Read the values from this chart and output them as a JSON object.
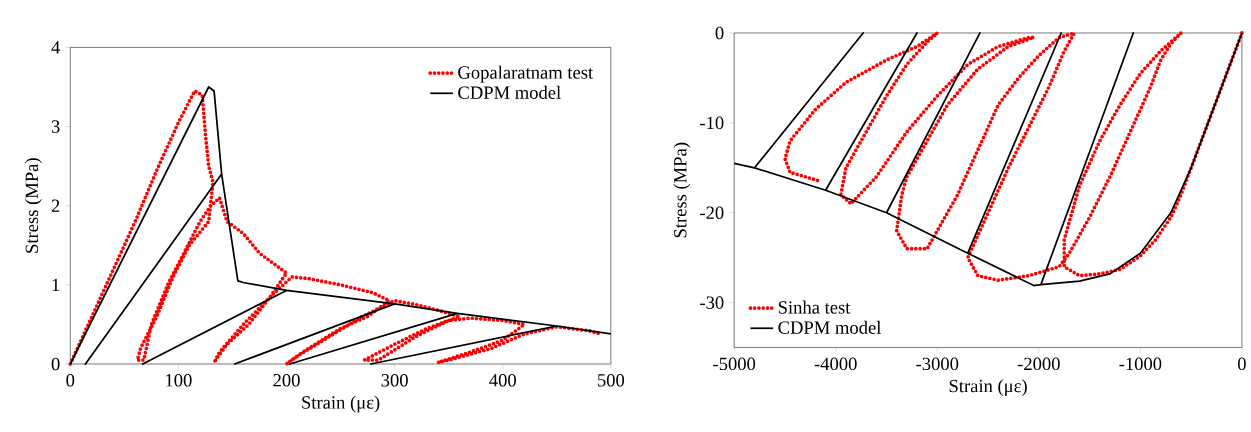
{
  "chart_data": [
    {
      "type": "line",
      "xlabel": "Strain (με)",
      "ylabel": "Stress (MPa)",
      "xlim": [
        0,
        500
      ],
      "ylim": [
        0,
        4
      ],
      "xticks": [
        0,
        100,
        200,
        300,
        400,
        500
      ],
      "yticks": [
        0,
        1,
        2,
        3,
        4
      ],
      "grid": false,
      "legend": "top right",
      "marker": "none",
      "series": [
        {
          "name": "Gopalaratnam test",
          "color": "#ff0000",
          "line_style": "dotted",
          "x": [
            0,
            20,
            40,
            60,
            80,
            100,
            115,
            122,
            125,
            128,
            132,
            128,
            110,
            95,
            80,
            65,
            62,
            68,
            75,
            90,
            105,
            120,
            130,
            138,
            145,
            160,
            175,
            190,
            200,
            185,
            165,
            145,
            133,
            138,
            160,
            185,
            205,
            220,
            250,
            280,
            295,
            275,
            250,
            215,
            200,
            210,
            240,
            270,
            300,
            320,
            340,
            360,
            330,
            300,
            272,
            285,
            320,
            350,
            370,
            400,
            420,
            400,
            370,
            340,
            350,
            390,
            420,
            450,
            480,
            490
          ],
          "values": [
            0,
            0.6,
            1.2,
            1.8,
            2.45,
            3.05,
            3.45,
            3.4,
            2.9,
            2.5,
            2.3,
            1.8,
            1.5,
            1.1,
            0.6,
            0.2,
            0.05,
            0.05,
            0.5,
            1.0,
            1.4,
            1.8,
            2.0,
            2.1,
            1.8,
            1.65,
            1.4,
            1.25,
            1.15,
            0.85,
            0.5,
            0.25,
            0.02,
            0.15,
            0.5,
            0.85,
            1.1,
            1.08,
            1.0,
            0.9,
            0.8,
            0.6,
            0.45,
            0.15,
            0,
            0.1,
            0.35,
            0.6,
            0.8,
            0.75,
            0.68,
            0.6,
            0.45,
            0.25,
            0.05,
            0.05,
            0.35,
            0.55,
            0.58,
            0.55,
            0.5,
            0.3,
            0.15,
            0.02,
            0.05,
            0.2,
            0.38,
            0.47,
            0.42,
            0.38
          ]
        },
        {
          "name": "CDPM model",
          "color": "#000000",
          "line_style": "solid",
          "x": [
            0,
            128,
            133,
            140,
            14,
            140,
            155,
            160,
            200,
            67,
            200,
            300,
            152,
            300,
            358,
            203,
            358,
            450,
            278,
            450,
            500
          ],
          "values": [
            0,
            3.5,
            3.45,
            2.4,
            0,
            2.4,
            1.05,
            1.03,
            0.93,
            0,
            0.93,
            0.76,
            0,
            0.76,
            0.64,
            0,
            0.64,
            0.48,
            0,
            0.48,
            0.38
          ]
        }
      ]
    },
    {
      "type": "line",
      "xlabel": "Strain (με)",
      "ylabel": "Stress (MPa)",
      "xlim": [
        -5000,
        0
      ],
      "ylim": [
        -35,
        0
      ],
      "xticks": [
        -5000,
        -4000,
        -3000,
        -2000,
        -1000,
        0
      ],
      "yticks": [
        -30,
        -20,
        -10,
        0
      ],
      "grid": false,
      "legend": "bottom left",
      "marker": "none",
      "series": [
        {
          "name": "Sinha test",
          "color": "#ff0000",
          "line_style": "dotted",
          "x": [
            0,
            -100,
            -200,
            -300,
            -400,
            -500,
            -600,
            -700,
            -850,
            -1000,
            -1200,
            -1400,
            -1600,
            -1750,
            -1750,
            -1600,
            -1400,
            -1200,
            -1000,
            -800,
            -700,
            -600,
            -700,
            -800,
            -900,
            -1100,
            -1300,
            -1500,
            -1700,
            -1800,
            -2100,
            -2400,
            -2600,
            -2700,
            -2500,
            -2300,
            -1900,
            -1750,
            -1650,
            -1800,
            -2000,
            -2200,
            -2400,
            -2600,
            -2800,
            -3100,
            -3300,
            -3400,
            -3350,
            -3300,
            -3100,
            -2900,
            -2600,
            -2300,
            -2050,
            -2100,
            -2400,
            -2700,
            -3000,
            -3300,
            -3600,
            -3850,
            -3950,
            -3900,
            -3700,
            -3500,
            -3300,
            -3100,
            -3000,
            -3200,
            -3500,
            -3900,
            -4200,
            -4450,
            -4500,
            -4450,
            -4300,
            -4150
          ],
          "values": [
            0,
            -3,
            -6,
            -9,
            -12,
            -15,
            -18,
            -20.5,
            -23,
            -24.8,
            -26.3,
            -26.8,
            -27,
            -26,
            -23,
            -17,
            -12,
            -8,
            -4.5,
            -2,
            -1,
            0,
            -1.2,
            -3,
            -6,
            -11,
            -16,
            -20.5,
            -24.5,
            -26,
            -27,
            -27.5,
            -27,
            -25,
            -20,
            -15,
            -6,
            -2,
            0,
            -0.5,
            -2.5,
            -5,
            -8,
            -13,
            -18,
            -24,
            -24,
            -22,
            -18,
            -16,
            -12,
            -8,
            -4,
            -1.5,
            -0.5,
            -0.5,
            -1.5,
            -3.5,
            -7,
            -11,
            -16,
            -19,
            -18,
            -15,
            -11,
            -7,
            -3.5,
            -1,
            0,
            -1.5,
            -3,
            -5.5,
            -8.5,
            -12,
            -14,
            -15.5,
            -16,
            -16.5
          ]
        },
        {
          "name": "CDPM model",
          "color": "#000000",
          "line_style": "solid",
          "x": [
            0,
            -100,
            -300,
            -500,
            -700,
            -1000,
            -1300,
            -1600,
            -1980,
            -1070,
            -1980,
            -2050,
            -2700,
            -1780,
            -2700,
            -3500,
            -2580,
            -3500,
            -4100,
            -3200,
            -4100,
            -4800,
            -3730,
            -4800,
            -5000
          ],
          "values": [
            0,
            -3,
            -9,
            -15,
            -20,
            -24.5,
            -26.8,
            -27.6,
            -28,
            0,
            -28,
            -28.1,
            -24.5,
            0,
            -24.5,
            -20,
            0,
            -20,
            -17.5,
            0,
            -17.5,
            -15,
            0,
            -15,
            -14.5
          ]
        }
      ]
    }
  ]
}
